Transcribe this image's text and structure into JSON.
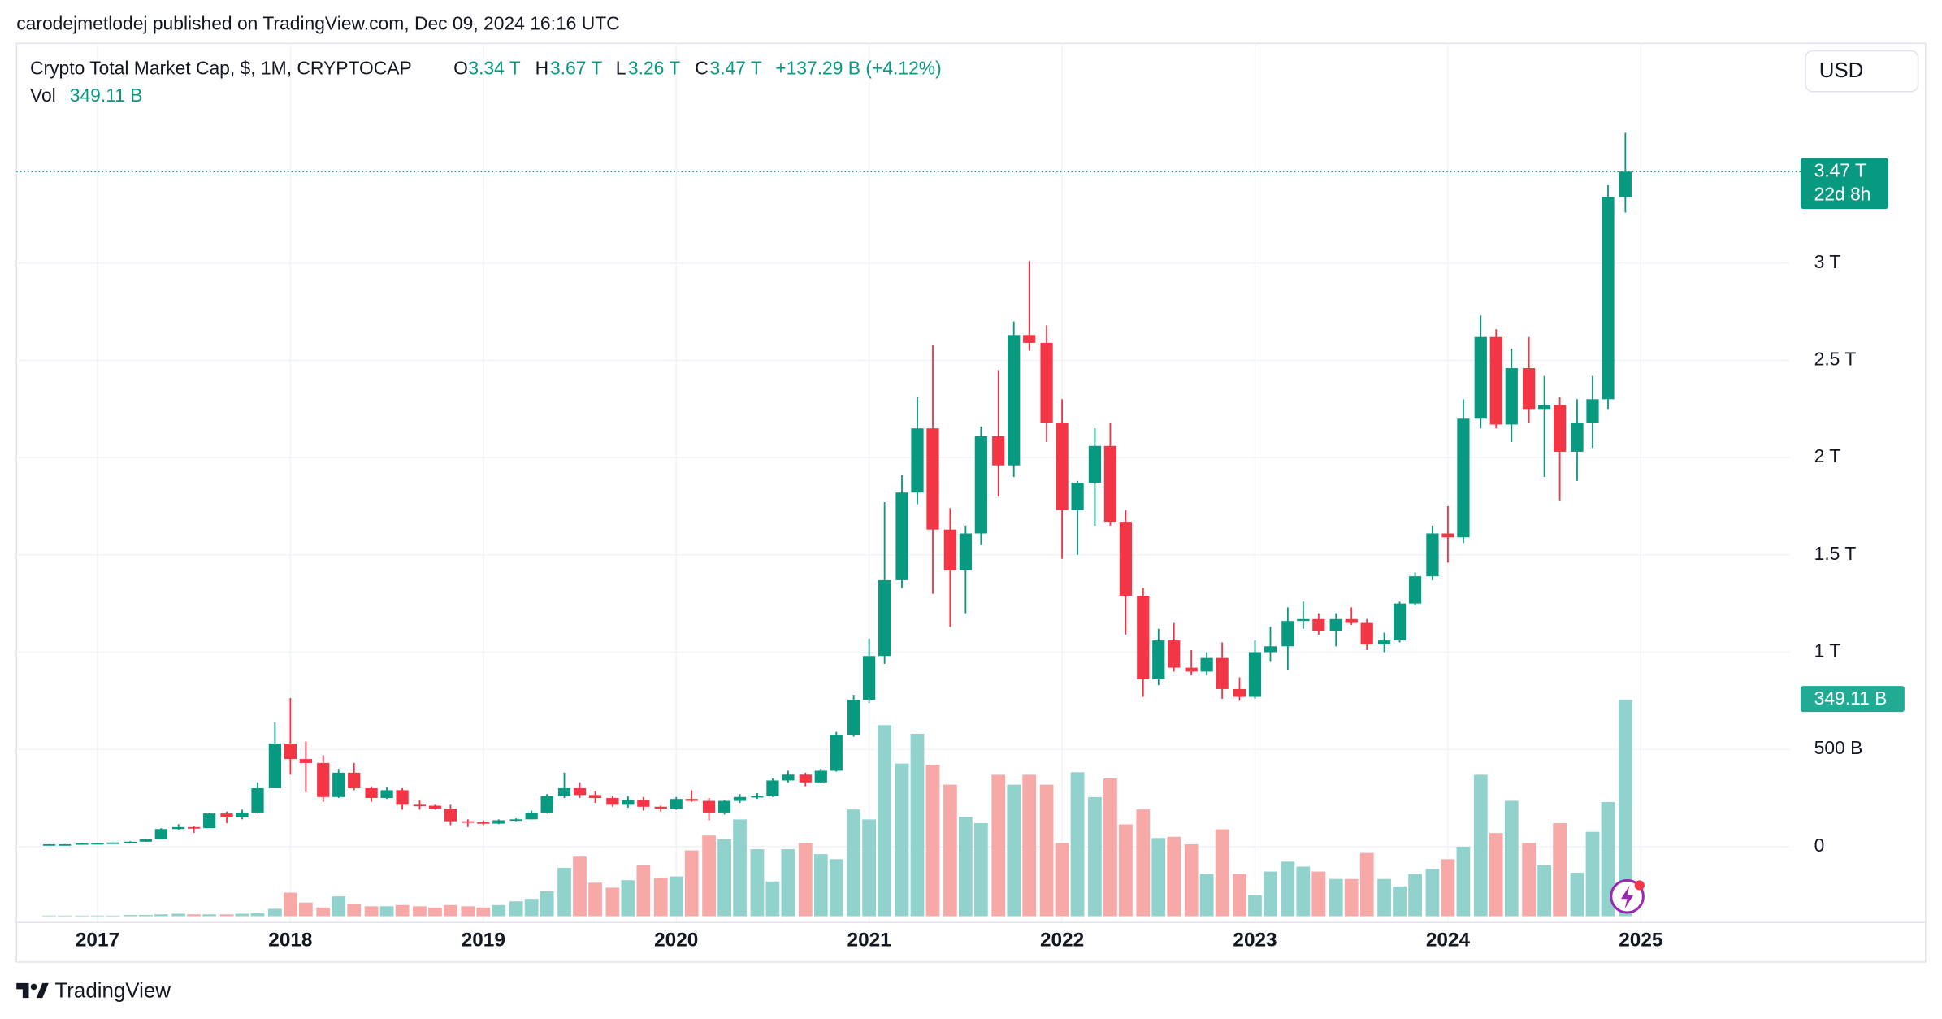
{
  "attribution": "carodejmetlodej published on TradingView.com, Dec 09, 2024 16:16 UTC",
  "branding": "TradingView",
  "currency_button": "USD",
  "chart_data": {
    "type": "candlestick",
    "legend": {
      "symbol": "Crypto Total Market Cap, $, 1M, CRYPTOCAP",
      "open_label": "O",
      "open": "3.34 T",
      "high_label": "H",
      "high": "3.67 T",
      "low_label": "L",
      "low": "3.26 T",
      "close_label": "C",
      "close": "3.47 T",
      "change": "+137.29 B (+4.12%)",
      "volume_label": "Vol",
      "volume": "349.11 B"
    },
    "last_price_label": "3.47 T",
    "countdown": "22d 8h",
    "last_volume_label": "349.11 B",
    "up_color": "#089981",
    "down_color": "#f23645",
    "volume_up_color": "#92d2cc",
    "volume_down_color": "#f7a9a7",
    "grid": true,
    "xlim": [
      2016.58,
      2025.77
    ],
    "xticks": [
      2017,
      2018,
      2019,
      2020,
      2021,
      2022,
      2023,
      2024,
      2025
    ],
    "ylim": [
      -390,
      4130
    ],
    "yticks": [
      0,
      {
        "value": 500,
        "label": "500 B"
      },
      {
        "value": 1000,
        "label": "1 T"
      },
      {
        "value": 1500,
        "label": "1.5 T"
      },
      {
        "value": 2000,
        "label": "2 T"
      },
      {
        "value": 2500,
        "label": "2.5 T"
      },
      {
        "value": 3000,
        "label": "3 T"
      }
    ],
    "x": [
      2016.75,
      2016.83,
      2016.92,
      2017,
      2017.08,
      2017.17,
      2017.25,
      2017.33,
      2017.42,
      2017.5,
      2017.58,
      2017.67,
      2017.75,
      2017.83,
      2017.92,
      2018,
      2018.08,
      2018.17,
      2018.25,
      2018.33,
      2018.42,
      2018.5,
      2018.58,
      2018.67,
      2018.75,
      2018.83,
      2018.92,
      2019,
      2019.08,
      2019.17,
      2019.25,
      2019.33,
      2019.42,
      2019.5,
      2019.58,
      2019.67,
      2019.75,
      2019.83,
      2019.92,
      2020,
      2020.08,
      2020.17,
      2020.25,
      2020.33,
      2020.42,
      2020.5,
      2020.58,
      2020.67,
      2020.75,
      2020.83,
      2020.92,
      2021,
      2021.08,
      2021.17,
      2021.25,
      2021.33,
      2021.42,
      2021.5,
      2021.58,
      2021.67,
      2021.75,
      2021.83,
      2021.92,
      2022,
      2022.08,
      2022.17,
      2022.25,
      2022.33,
      2022.42,
      2022.5,
      2022.58,
      2022.67,
      2022.75,
      2022.83,
      2022.92,
      2023,
      2023.08,
      2023.17,
      2023.25,
      2023.33,
      2023.42,
      2023.5,
      2023.58,
      2023.67,
      2023.75,
      2023.83,
      2023.92,
      2024,
      2024.08,
      2024.17,
      2024.25,
      2024.33,
      2024.42,
      2024.5,
      2024.58,
      2024.67,
      2024.75,
      2024.83,
      2024.92
    ],
    "open": [
      12,
      12,
      12,
      17,
      18,
      21,
      25,
      38,
      90,
      100,
      95,
      170,
      150,
      175,
      300,
      530,
      450,
      430,
      255,
      380,
      300,
      250,
      290,
      215,
      210,
      195,
      130,
      125,
      118,
      135,
      140,
      175,
      260,
      300,
      265,
      250,
      215,
      240,
      205,
      195,
      245,
      235,
      175,
      235,
      255,
      260,
      340,
      370,
      330,
      390,
      575,
      755,
      980,
      1370,
      1820,
      2150,
      1630,
      1420,
      1610,
      2110,
      1960,
      2630,
      2590,
      2180,
      1730,
      1870,
      2060,
      1670,
      1290,
      860,
      1060,
      920,
      900,
      970,
      810,
      770,
      1000,
      1030,
      1160,
      1170,
      1110,
      1170,
      1150,
      1040,
      1060,
      1250,
      1390,
      1610,
      1590,
      2200,
      2620,
      2170,
      2460,
      2250,
      2270,
      2030,
      2180,
      2300,
      3340
    ],
    "high": [
      13,
      13,
      18,
      19,
      22,
      28,
      40,
      95,
      115,
      105,
      175,
      180,
      190,
      330,
      640,
      764,
      540,
      470,
      400,
      430,
      310,
      305,
      300,
      240,
      215,
      215,
      140,
      135,
      140,
      145,
      185,
      270,
      380,
      330,
      285,
      260,
      260,
      255,
      210,
      255,
      290,
      250,
      240,
      270,
      275,
      350,
      390,
      380,
      400,
      590,
      780,
      1070,
      1770,
      1910,
      2310,
      2580,
      1740,
      1650,
      2160,
      2450,
      2700,
      3010,
      2680,
      2300,
      1880,
      2150,
      2180,
      1730,
      1330,
      1120,
      1150,
      1010,
      1000,
      1050,
      870,
      1060,
      1130,
      1230,
      1260,
      1200,
      1200,
      1230,
      1170,
      1100,
      1260,
      1410,
      1650,
      1750,
      2300,
      2730,
      2660,
      2560,
      2620,
      2420,
      2310,
      2300,
      2420,
      3400,
      3670
    ],
    "low": [
      11,
      11,
      12,
      15,
      17,
      19,
      25,
      38,
      85,
      70,
      95,
      120,
      140,
      170,
      300,
      370,
      280,
      230,
      250,
      290,
      230,
      245,
      190,
      190,
      190,
      110,
      100,
      110,
      115,
      130,
      140,
      170,
      250,
      250,
      225,
      205,
      200,
      185,
      180,
      190,
      230,
      135,
      165,
      225,
      245,
      255,
      330,
      310,
      325,
      385,
      565,
      740,
      940,
      1330,
      1760,
      1300,
      1130,
      1200,
      1550,
      1800,
      1900,
      2550,
      2080,
      1480,
      1500,
      1650,
      1650,
      1090,
      770,
      830,
      900,
      880,
      880,
      760,
      750,
      760,
      950,
      910,
      1120,
      1090,
      1030,
      1140,
      1010,
      1000,
      1050,
      1240,
      1370,
      1460,
      1560,
      2150,
      2150,
      2080,
      2180,
      1900,
      1780,
      1880,
      2050,
      2250,
      3260
    ],
    "close": [
      12,
      12,
      17,
      18,
      21,
      25,
      38,
      90,
      100,
      95,
      170,
      150,
      175,
      300,
      530,
      450,
      430,
      255,
      380,
      300,
      250,
      290,
      215,
      210,
      195,
      130,
      125,
      118,
      135,
      140,
      175,
      260,
      300,
      265,
      250,
      215,
      240,
      205,
      195,
      245,
      235,
      175,
      235,
      255,
      260,
      340,
      370,
      330,
      390,
      575,
      755,
      980,
      1370,
      1820,
      2150,
      1630,
      1420,
      1610,
      2110,
      1960,
      2630,
      2590,
      2180,
      1730,
      1870,
      2060,
      1670,
      1290,
      860,
      1060,
      920,
      900,
      970,
      810,
      770,
      1000,
      1030,
      1160,
      1170,
      1110,
      1170,
      1150,
      1040,
      1060,
      1250,
      1390,
      1610,
      1590,
      2200,
      2620,
      2170,
      2460,
      2250,
      2270,
      2030,
      2180,
      2300,
      3340,
      3470
    ],
    "volume": [
      1,
      1,
      1,
      1,
      1,
      2,
      2,
      3,
      4,
      3,
      3,
      3,
      4,
      5,
      12,
      38,
      22,
      14,
      32,
      20,
      16,
      16,
      18,
      16,
      14,
      18,
      16,
      14,
      18,
      24,
      28,
      40,
      78,
      96,
      54,
      46,
      58,
      82,
      62,
      64,
      106,
      130,
      124,
      156,
      108,
      56,
      108,
      118,
      100,
      92,
      172,
      156,
      308,
      246,
      294,
      244,
      212,
      160,
      150,
      228,
      212,
      228,
      212,
      118,
      232,
      192,
      222,
      148,
      172,
      126,
      128,
      116,
      68,
      140,
      68,
      34,
      72,
      88,
      80,
      72,
      60,
      60,
      102,
      60,
      48,
      68,
      76,
      92,
      112,
      228,
      134,
      186,
      118,
      82,
      150,
      70,
      136,
      184,
      349.11
    ]
  }
}
